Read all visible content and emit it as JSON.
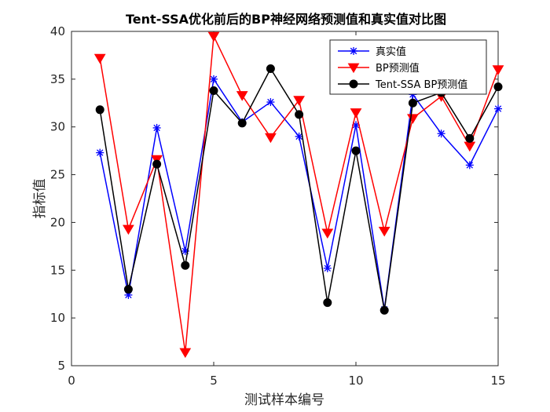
{
  "chart_data": {
    "type": "line",
    "title": "Tent-SSA优化前后的BP神经网络预测值和真实值对比图",
    "xlabel": "测试样本编号",
    "ylabel": "指标值",
    "xlim": [
      0,
      15
    ],
    "ylim": [
      5,
      40
    ],
    "xticks": [
      "0",
      "5",
      "10",
      "15"
    ],
    "yticks": [
      "5",
      "10",
      "15",
      "20",
      "25",
      "30",
      "35",
      "40"
    ],
    "grid": false,
    "legend_position": "top-right",
    "x": [
      1,
      2,
      3,
      4,
      5,
      6,
      7,
      8,
      9,
      10,
      11,
      12,
      13,
      14,
      15
    ],
    "series": [
      {
        "name": "真实值",
        "color": "#0000ff",
        "marker": "asterisk",
        "values": [
          27.3,
          12.4,
          29.9,
          17.0,
          35.0,
          30.5,
          32.6,
          29.0,
          15.2,
          30.2,
          10.9,
          33.4,
          29.3,
          26.0,
          31.9
        ]
      },
      {
        "name": "BP预测值",
        "color": "#ff0000",
        "marker": "triangle-down",
        "values": [
          37.2,
          19.3,
          26.6,
          6.4,
          39.5,
          33.3,
          28.9,
          32.8,
          18.9,
          31.5,
          19.1,
          30.9,
          33.2,
          28.0,
          36.0
        ]
      },
      {
        "name": "Tent-SSA BP预测值",
        "color": "#000000",
        "marker": "circle",
        "values": [
          31.8,
          13.0,
          26.1,
          15.5,
          33.8,
          30.4,
          36.1,
          31.3,
          11.6,
          27.5,
          10.8,
          32.5,
          33.6,
          28.8,
          34.2
        ]
      }
    ]
  }
}
